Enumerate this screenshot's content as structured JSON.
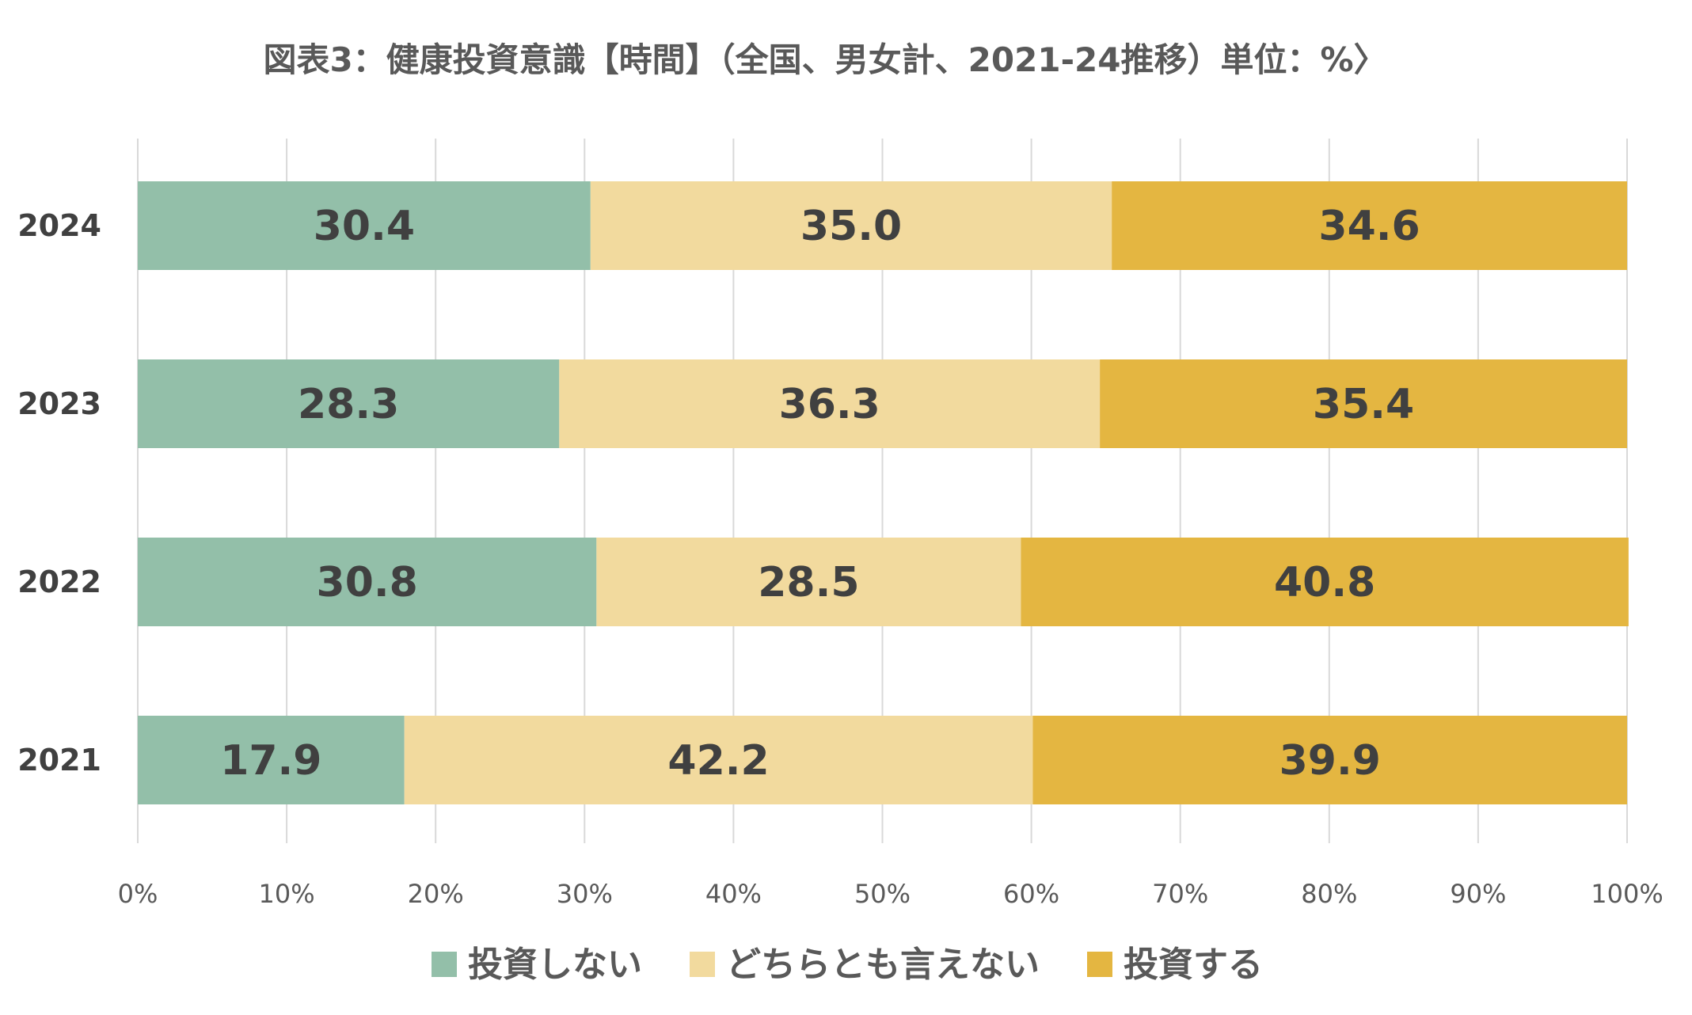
{
  "chart_data": {
    "type": "bar",
    "orientation": "horizontal",
    "stacked": true,
    "title": "図表3：健康投資意識【時間】（全国、男女計、2021-24推移）単位：%〉",
    "categories": [
      "2024",
      "2023",
      "2022",
      "2021"
    ],
    "series": [
      {
        "name": "投資しない",
        "color": "#93bfa9",
        "values": [
          30.4,
          28.3,
          30.8,
          17.9
        ]
      },
      {
        "name": "どちらとも言えない",
        "color": "#f2da9e",
        "values": [
          35.0,
          36.3,
          28.5,
          42.2
        ]
      },
      {
        "name": "投資する",
        "color": "#e4b641",
        "values": [
          34.6,
          35.4,
          40.8,
          39.9
        ]
      }
    ],
    "xlim": [
      0,
      100
    ],
    "xticks": [
      "0%",
      "10%",
      "20%",
      "30%",
      "40%",
      "50%",
      "60%",
      "70%",
      "80%",
      "90%",
      "100%"
    ],
    "xlabel": "",
    "ylabel": "",
    "grid": "vertical",
    "legend_position": "bottom",
    "label_color": "#404040"
  }
}
